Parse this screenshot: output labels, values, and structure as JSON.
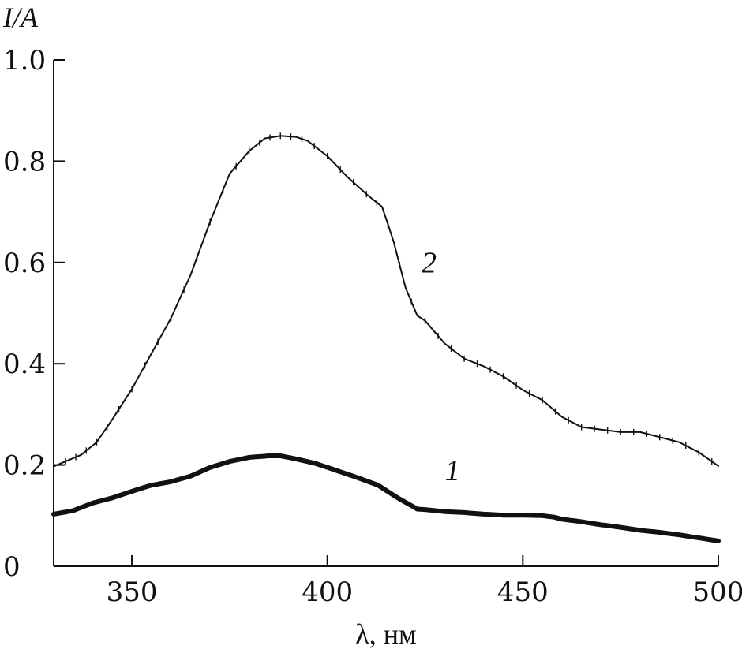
{
  "chart_data": {
    "type": "line",
    "title": "",
    "xlabel": "λ, нм",
    "ylabel": "I/A",
    "xlim": [
      330,
      500
    ],
    "ylim": [
      0,
      1.0
    ],
    "xticks": [
      350,
      400,
      450,
      500
    ],
    "xtick_labels": [
      "350",
      "400",
      "450",
      "500"
    ],
    "yticks": [
      0,
      0.2,
      0.4,
      0.6,
      0.8,
      1.0
    ],
    "ytick_labels": [
      "0",
      "0.2",
      "0.4",
      "0.6",
      "0.8",
      "1.0"
    ],
    "grid": false,
    "legend": "none",
    "series": [
      {
        "name": "1",
        "line_width": "thick",
        "markers": false,
        "x": [
          330,
          335,
          340,
          345,
          350,
          355,
          360,
          365,
          370,
          375,
          380,
          385,
          388,
          392,
          397,
          402,
          407,
          413,
          418,
          423,
          425,
          430,
          435,
          440,
          445,
          450,
          455,
          458,
          460,
          465,
          470,
          475,
          480,
          485,
          490,
          495,
          500
        ],
        "y": [
          0.103,
          0.11,
          0.125,
          0.135,
          0.148,
          0.16,
          0.167,
          0.178,
          0.195,
          0.207,
          0.215,
          0.218,
          0.218,
          0.212,
          0.203,
          0.19,
          0.177,
          0.16,
          0.135,
          0.113,
          0.112,
          0.108,
          0.106,
          0.103,
          0.101,
          0.101,
          0.1,
          0.097,
          0.093,
          0.088,
          0.082,
          0.077,
          0.071,
          0.067,
          0.062,
          0.056,
          0.05
        ]
      },
      {
        "name": "2",
        "line_width": "thin",
        "markers": true,
        "x": [
          330,
          333,
          337,
          341,
          345,
          350,
          355,
          360,
          365,
          370,
          375,
          380,
          384,
          388,
          392,
          395,
          400,
          405,
          410,
          414,
          417,
          420,
          423,
          425,
          430,
          435,
          440,
          445,
          450,
          455,
          460,
          465,
          470,
          475,
          480,
          485,
          490,
          495,
          500
        ],
        "y": [
          0.197,
          0.207,
          0.22,
          0.245,
          0.29,
          0.35,
          0.42,
          0.49,
          0.575,
          0.68,
          0.775,
          0.82,
          0.845,
          0.85,
          0.848,
          0.84,
          0.81,
          0.77,
          0.735,
          0.71,
          0.64,
          0.55,
          0.495,
          0.485,
          0.44,
          0.41,
          0.395,
          0.375,
          0.348,
          0.328,
          0.295,
          0.275,
          0.27,
          0.265,
          0.265,
          0.255,
          0.245,
          0.225,
          0.198
        ]
      }
    ],
    "annotations": [
      {
        "text": "2",
        "x": 426,
        "y": 0.58
      },
      {
        "text": "1",
        "x": 432,
        "y": 0.17
      }
    ]
  }
}
